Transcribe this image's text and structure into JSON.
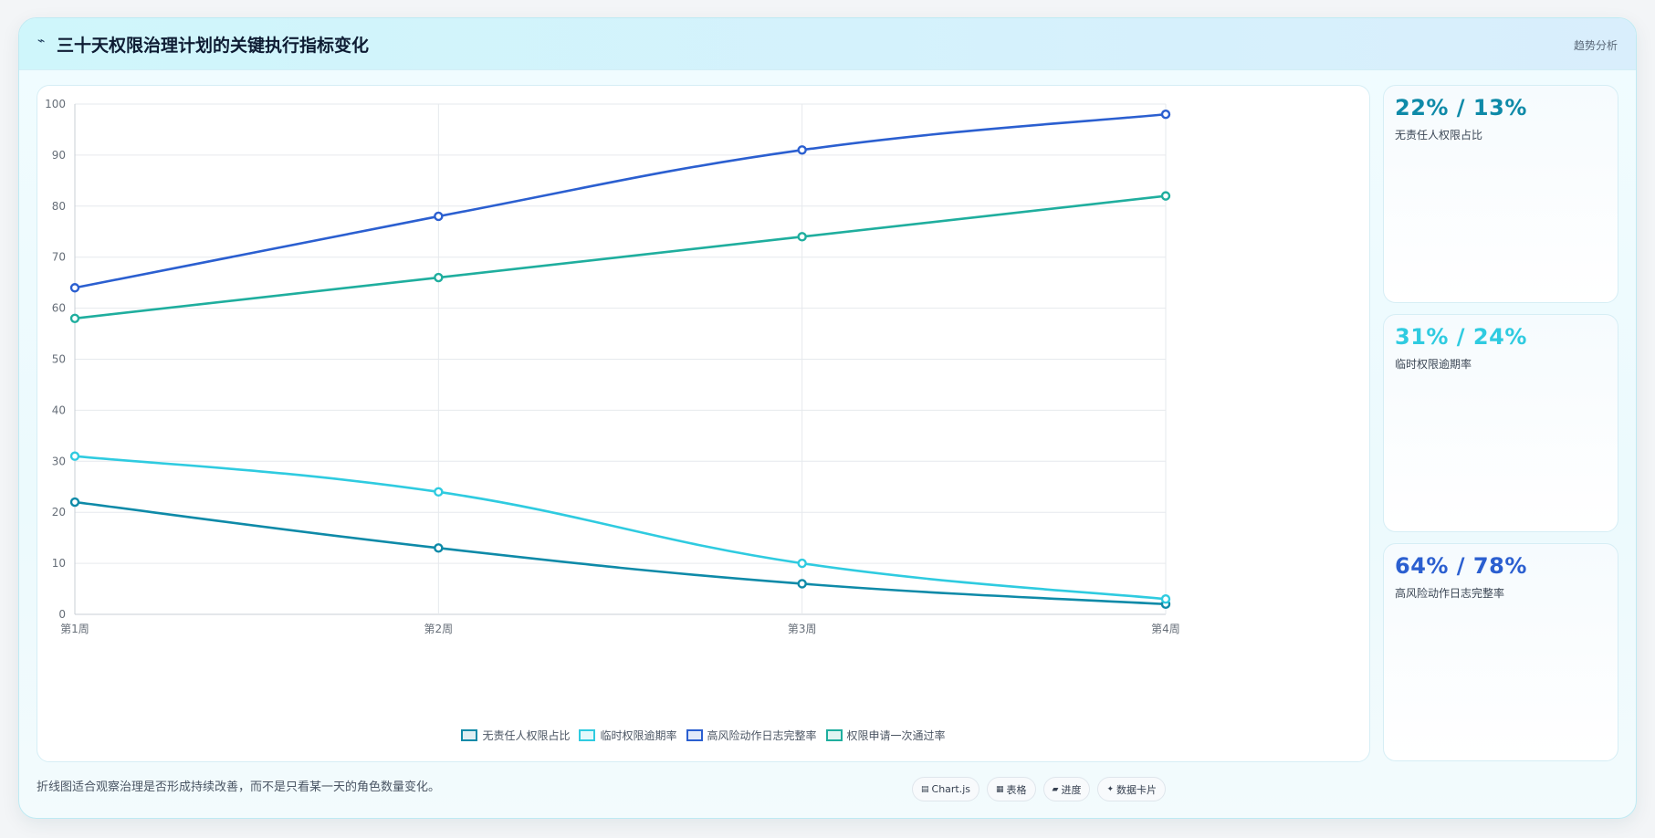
{
  "header": {
    "icon": "⌁",
    "title": "三十天权限治理计划的关键执行指标变化",
    "right_label": "趋势分析"
  },
  "chart_data": {
    "type": "line",
    "categories": [
      "第1周",
      "第2周",
      "第3周",
      "第4周"
    ],
    "ylim": [
      0,
      100
    ],
    "yticks": [
      0,
      10,
      20,
      30,
      40,
      50,
      60,
      70,
      80,
      90,
      100
    ],
    "grid": true,
    "legend_position": "bottom",
    "series": [
      {
        "name": "无责任人权限占比",
        "color": "#0e8aa8",
        "values": [
          22,
          13,
          6,
          2
        ]
      },
      {
        "name": "临时权限逾期率",
        "color": "#2fcbe0",
        "values": [
          31,
          24,
          10,
          3
        ]
      },
      {
        "name": "高风险动作日志完整率",
        "color": "#2b5fd0",
        "values": [
          64,
          78,
          91,
          98
        ]
      },
      {
        "name": "权限申请一次通过率",
        "color": "#1fae9e",
        "values": [
          58,
          66,
          74,
          82
        ]
      }
    ]
  },
  "stats": [
    {
      "value": "22% / 13%",
      "label": "无责任人权限占比",
      "color": "#0e8aa8"
    },
    {
      "value": "31% / 24%",
      "label": "临时权限逾期率",
      "color": "#2fcbe0"
    },
    {
      "value": "64% / 78%",
      "label": "高风险动作日志完整率",
      "color": "#2b5fd0"
    }
  ],
  "footnote": "折线图适合观察治理是否形成持续改善，而不是只看某一天的角色数量变化。",
  "chips": [
    {
      "icon": "▤",
      "label": "Chart.js"
    },
    {
      "icon": "▦",
      "label": "表格"
    },
    {
      "icon": "▰",
      "label": "进度"
    },
    {
      "icon": "✦",
      "label": "数据卡片"
    }
  ]
}
